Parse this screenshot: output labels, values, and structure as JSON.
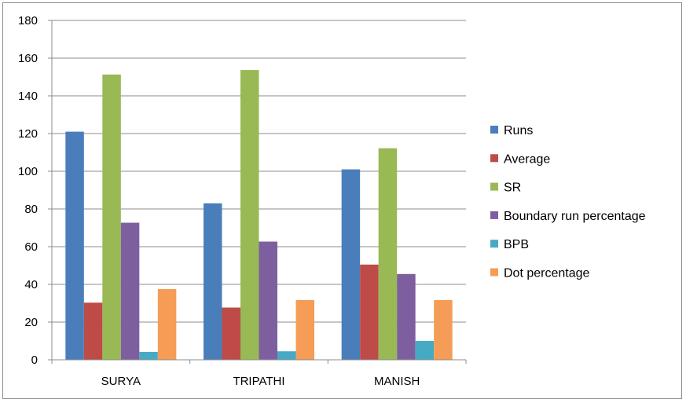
{
  "chart_data": {
    "type": "bar",
    "title": "",
    "xlabel": "",
    "ylabel": "",
    "ylim": [
      0,
      180
    ],
    "y_ticks": [
      0,
      20,
      40,
      60,
      80,
      100,
      120,
      140,
      160,
      180
    ],
    "grid": "horizontal",
    "legend_position": "right",
    "categories": [
      "SURYA",
      "TRIPATHI",
      "MANISH"
    ],
    "series": [
      {
        "name": "Runs",
        "color": "#4a7ebb",
        "values": [
          121,
          83,
          101
        ]
      },
      {
        "name": "Average",
        "color": "#be4b48",
        "values": [
          30.3,
          27.7,
          50.5
        ]
      },
      {
        "name": "SR",
        "color": "#98b954",
        "values": [
          151.3,
          153.7,
          112.2
        ]
      },
      {
        "name": "Boundary run percentage",
        "color": "#7d5fa0",
        "values": [
          72.7,
          62.7,
          45.5
        ]
      },
      {
        "name": "BPB",
        "color": "#46aac5",
        "values": [
          4.2,
          4.5,
          10
        ]
      },
      {
        "name": "Dot percentage",
        "color": "#f59d56",
        "values": [
          37.5,
          31.7,
          31.7
        ]
      }
    ]
  }
}
